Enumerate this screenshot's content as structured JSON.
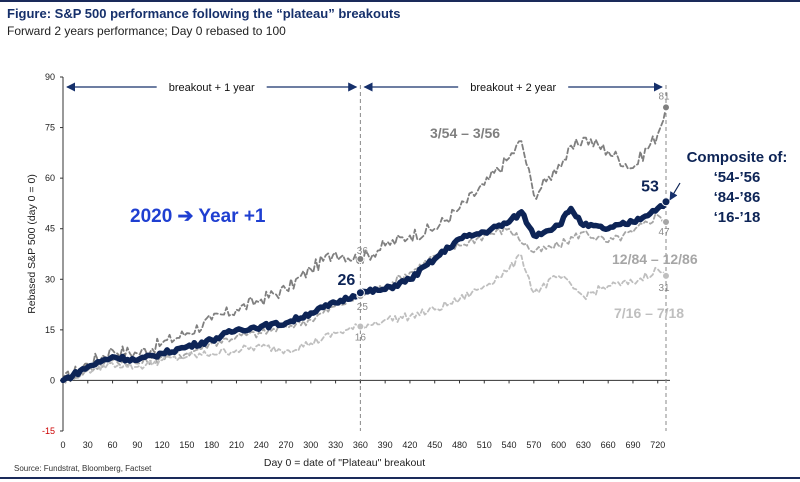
{
  "figure": {
    "title": "Figure: S&P 500 performance following the “plateau” breakouts",
    "subtitle": "Forward 2 years performance; Day 0 rebased to 100",
    "source": "Source: Fundstrat, Bloomberg, Factset"
  },
  "chart_data": {
    "type": "line",
    "xlabel": "Day 0 = date of \"Plateau\" breakout",
    "ylabel": "Rebased S&P 500 (day 0 = 0)",
    "xlim": [
      0,
      730
    ],
    "ylim": [
      -15,
      90
    ],
    "x_ticks": [
      "0",
      "30",
      "60",
      "90",
      "120",
      "150",
      "180",
      "210",
      "240",
      "270",
      "300",
      "330",
      "360",
      "390",
      "420",
      "450",
      "480",
      "510",
      "540",
      "570",
      "600",
      "630",
      "660",
      "690",
      "720"
    ],
    "y_ticks": [
      "90",
      "75",
      "60",
      "45",
      "30",
      "15",
      "0",
      "-15"
    ],
    "grid": false,
    "series": [
      {
        "name": "3/54 – 3/56",
        "color": "#7f7f7f",
        "style": "dashed",
        "x": [
          0,
          30,
          60,
          90,
          120,
          150,
          180,
          210,
          240,
          270,
          300,
          330,
          360,
          390,
          420,
          450,
          480,
          510,
          540,
          555,
          570,
          585,
          600,
          630,
          660,
          690,
          720,
          730
        ],
        "y": [
          0,
          5,
          9,
          8,
          11,
          14,
          18,
          21,
          24,
          27,
          33,
          38,
          36,
          40,
          43,
          45,
          51,
          58,
          66,
          71,
          55,
          59,
          64,
          72,
          68,
          63,
          73,
          81
        ]
      },
      {
        "name": "12/84 – 12/86",
        "color": "#a6a6a6",
        "style": "dashed",
        "x": [
          0,
          30,
          60,
          90,
          120,
          150,
          180,
          210,
          240,
          270,
          300,
          330,
          360,
          390,
          420,
          450,
          480,
          510,
          540,
          570,
          600,
          630,
          660,
          690,
          720,
          730
        ],
        "y": [
          0,
          3,
          6,
          5,
          7,
          8,
          11,
          13,
          14,
          16,
          18,
          22,
          25,
          28,
          32,
          37,
          40,
          43,
          45,
          38,
          40,
          44,
          41,
          44,
          49,
          47
        ]
      },
      {
        "name": "7/16 – 7/18",
        "color": "#bfbfbf",
        "style": "dashed",
        "x": [
          0,
          30,
          60,
          90,
          120,
          150,
          180,
          210,
          240,
          270,
          300,
          330,
          360,
          390,
          420,
          450,
          480,
          510,
          540,
          555,
          570,
          600,
          630,
          660,
          690,
          720,
          730
        ],
        "y": [
          0,
          3,
          5,
          4,
          6,
          7,
          8,
          9,
          10,
          9,
          11,
          14,
          16,
          18,
          19,
          21,
          24,
          28,
          33,
          37,
          26,
          31,
          25,
          28,
          29,
          33,
          31
        ]
      },
      {
        "name": "Composite of:",
        "color": "#0d2456",
        "style": "solid",
        "x": [
          0,
          30,
          60,
          90,
          120,
          150,
          180,
          210,
          240,
          270,
          300,
          330,
          360,
          390,
          420,
          450,
          480,
          510,
          540,
          555,
          570,
          600,
          615,
          630,
          660,
          690,
          720,
          730
        ],
        "y": [
          0,
          4,
          7,
          6,
          8,
          10,
          12,
          15,
          16,
          17,
          20,
          23,
          26,
          27,
          30,
          36,
          42,
          44,
          47,
          50,
          43,
          46,
          51,
          46,
          45,
          47,
          51,
          53
        ]
      }
    ],
    "point_labels": [
      {
        "series": 0,
        "x": 360,
        "y": 36,
        "text": "36"
      },
      {
        "series": 1,
        "x": 360,
        "y": 25,
        "text": "25"
      },
      {
        "series": 2,
        "x": 360,
        "y": 16,
        "text": "16"
      },
      {
        "series": 3,
        "x": 360,
        "y": 26,
        "text": "26"
      },
      {
        "series": 0,
        "x": 730,
        "y": 81,
        "text": "81"
      },
      {
        "series": 1,
        "x": 730,
        "y": 47,
        "text": "47"
      },
      {
        "series": 2,
        "x": 730,
        "y": 31,
        "text": "31"
      },
      {
        "series": 3,
        "x": 730,
        "y": 53,
        "text": "53"
      }
    ],
    "annotations": {
      "breakout_1yr": "breakout + 1 year",
      "breakout_2yr": "breakout + 2 year",
      "year_plus_1": "2020 ➔ Year +1",
      "composite_lines": [
        "Composite of:",
        "‘54-’56",
        "‘84-’86",
        "‘16-’18"
      ],
      "series_labels": [
        "3/54 – 3/56",
        "12/84 – 12/86",
        "7/16 – 7/18"
      ]
    },
    "colors": {
      "composite_text": "#0d2456",
      "year_text": "#1f3fd1",
      "negative_tick": "#cc0000"
    }
  }
}
